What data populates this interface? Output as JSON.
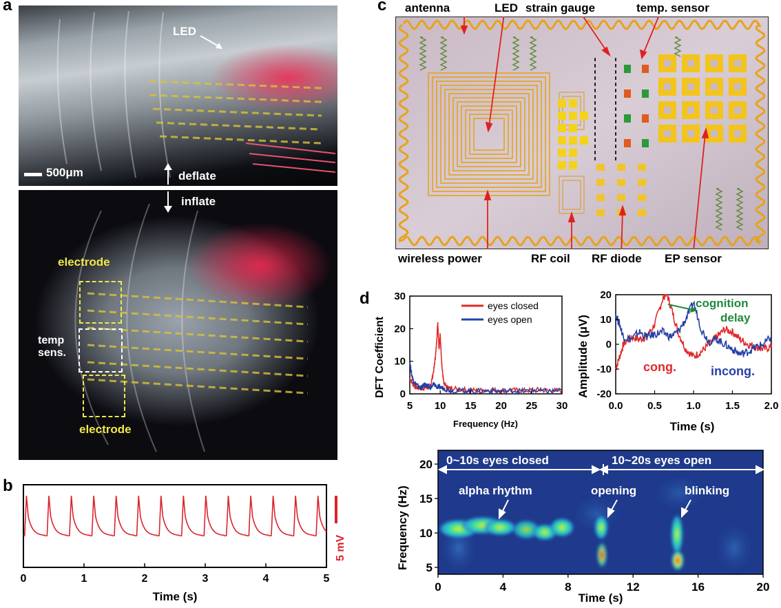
{
  "panel_a": {
    "letter": "a",
    "led_label": "LED",
    "scale_label": "500μm",
    "deflate": "deflate",
    "inflate": "inflate",
    "electrode_top": "electrode",
    "temp_line1": "temp",
    "temp_line2": "sens.",
    "electrode_bottom": "electrode"
  },
  "panel_b": {
    "letter": "b",
    "scale_label": "5 mV",
    "chart_data": {
      "type": "line",
      "xlabel": "Time (s)",
      "ylabel": "",
      "xlim": [
        0,
        5
      ],
      "xticks": [
        0,
        1,
        2,
        3,
        4,
        5
      ],
      "beats": [
        0.05,
        0.42,
        0.79,
        1.16,
        1.53,
        1.9,
        2.27,
        2.64,
        3.01,
        3.38,
        3.75,
        4.12,
        4.49,
        4.86
      ],
      "color": "#d9232b"
    }
  },
  "panel_c": {
    "letter": "c",
    "labels": {
      "antenna": "antenna",
      "led": "LED",
      "strain_gauge": "strain gauge",
      "temp_sensor": "temp. sensor",
      "wireless_power": "wireless power",
      "rf_coil": "RF coil",
      "rf_diode": "RF diode",
      "ep_sensor": "EP sensor"
    }
  },
  "panel_d": {
    "letter": "d",
    "dft": {
      "chart_data": {
        "type": "line",
        "xlabel": "Frequency (Hz)",
        "ylabel": "DFT Coefficient",
        "xlim": [
          5,
          30
        ],
        "ylim": [
          0,
          30
        ],
        "xticks": [
          5,
          10,
          15,
          20,
          25,
          30
        ],
        "yticks": [
          0,
          10,
          20,
          30
        ],
        "legend_position": "top-right",
        "series": [
          {
            "name": "eyes closed",
            "color": "#e02a2a",
            "x": [
              5,
              5.5,
              6,
              6.5,
              7,
              7.5,
              8,
              8.5,
              9,
              9.3,
              9.6,
              9.8,
              10,
              10.3,
              10.6,
              11,
              12,
              14,
              16,
              18,
              20,
              22,
              24,
              26,
              28,
              30
            ],
            "y": [
              5,
              3,
              2,
              2,
              1.5,
              2,
              2,
              3,
              8,
              13,
              22,
              14,
              18,
              8,
              3,
              2,
              1.5,
              1.2,
              1,
              1.2,
              1,
              1.1,
              1,
              1.2,
              1,
              1
            ]
          },
          {
            "name": "eyes open",
            "color": "#2540a8",
            "x": [
              5,
              5.3,
              5.6,
              6,
              6.5,
              7,
              7.5,
              8,
              8.5,
              9,
              9.5,
              10,
              11,
              12,
              14,
              16,
              18,
              20,
              22,
              24,
              26,
              28,
              30
            ],
            "y": [
              10,
              6,
              4,
              3,
              2,
              2,
              3,
              2,
              2,
              3,
              2,
              2,
              1.5,
              1,
              1,
              0.8,
              1,
              0.8,
              1,
              0.8,
              1,
              0.8,
              1
            ]
          }
        ]
      }
    },
    "erp": {
      "annotation_line1": "cognition",
      "annotation_line2": "delay",
      "cong_label": "cong.",
      "incong_label": "incong.",
      "chart_data": {
        "type": "line",
        "xlabel": "Time (s)",
        "ylabel": "Amplitude (μV)",
        "xlim": [
          0,
          2
        ],
        "ylim": [
          -20,
          20
        ],
        "xticks": [
          "0.0",
          "0.5",
          "1.0",
          "1.5",
          "2.0"
        ],
        "yticks": [
          -20,
          -10,
          0,
          10,
          20
        ],
        "series": [
          {
            "name": "cong.",
            "color": "#e02a2a",
            "x": [
              0,
              0.05,
              0.1,
              0.2,
              0.3,
              0.4,
              0.5,
              0.6,
              0.65,
              0.72,
              0.8,
              0.9,
              1.0,
              1.1,
              1.2,
              1.3,
              1.4,
              1.5,
              1.6,
              1.7,
              1.8,
              1.9,
              2.0
            ],
            "y": [
              -10,
              -5,
              0,
              3,
              2,
              3,
              8,
              18,
              21,
              14,
              5,
              -2,
              -5,
              -3,
              0,
              3,
              6,
              5,
              2,
              0,
              -1,
              -2,
              -1
            ]
          },
          {
            "name": "incong.",
            "color": "#2540a8",
            "x": [
              0,
              0.05,
              0.1,
              0.2,
              0.3,
              0.4,
              0.5,
              0.6,
              0.7,
              0.8,
              0.9,
              1.0,
              1.1,
              1.2,
              1.3,
              1.4,
              1.5,
              1.6,
              1.7,
              1.8,
              1.9,
              2.0
            ],
            "y": [
              12,
              8,
              3,
              2,
              5,
              3,
              4,
              5,
              3,
              5,
              10,
              17,
              6,
              1,
              2,
              0,
              -2,
              -4,
              -3,
              -1,
              0,
              3
            ]
          }
        ]
      }
    },
    "spectrogram": {
      "eyes_closed_label": "0~10s eyes closed",
      "eyes_open_label": "10~20s eyes open",
      "alpha_label": "alpha rhythm",
      "opening_label": "opening",
      "blinking_label": "blinking",
      "chart_data": {
        "type": "heatmap",
        "xlabel": "Time (s)",
        "ylabel": "Frequency (Hz)",
        "xlim": [
          0,
          20
        ],
        "ylim": [
          4,
          22
        ],
        "xticks": [
          0,
          4,
          8,
          12,
          16,
          20
        ],
        "yticks": [
          5,
          10,
          15,
          20
        ],
        "colormap": "jet",
        "background_color": "#1f3a8c"
      }
    }
  }
}
